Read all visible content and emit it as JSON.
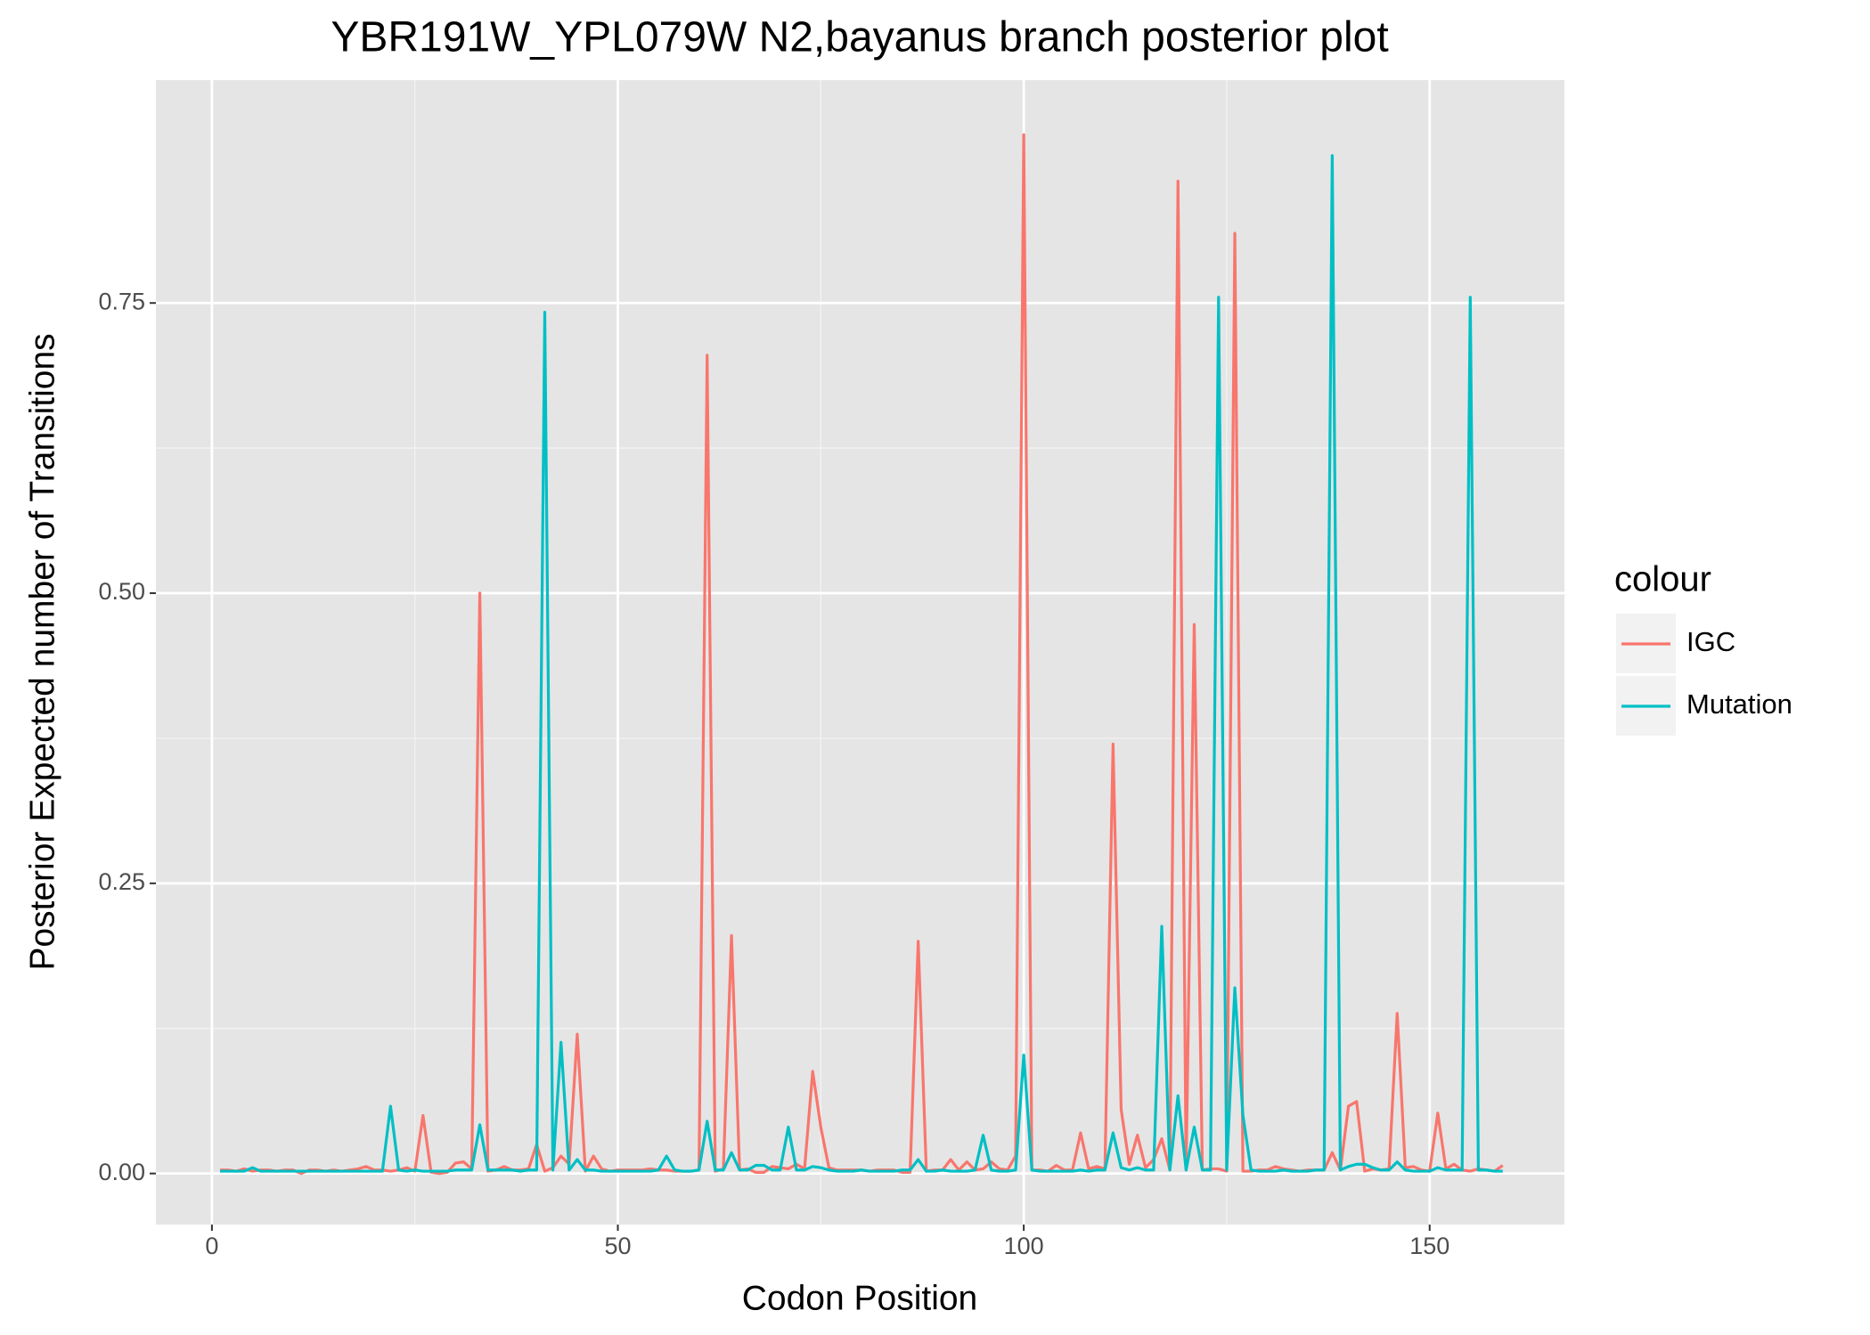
{
  "chart_data": {
    "type": "line",
    "title": "YBR191W_YPL079W N2,bayanus branch posterior plot",
    "x_label": "Codon Position",
    "y_label": "Posterior Expected number of Transitions",
    "legend_title": "colour",
    "legend": "right",
    "grid": true,
    "xlim": [
      -6.9,
      166.6
    ],
    "ylim": [
      -0.044,
      0.942
    ],
    "xticks": [
      0,
      50,
      100,
      150
    ],
    "yticks": [
      {
        "value": 0,
        "label": "0.00"
      },
      {
        "value": 0.25,
        "label": "0.25"
      },
      {
        "value": 0.5,
        "label": "0.50"
      },
      {
        "value": 0.75,
        "label": "0.75"
      }
    ],
    "x": [
      1,
      2,
      3,
      4,
      5,
      6,
      7,
      8,
      9,
      10,
      11,
      12,
      13,
      14,
      15,
      16,
      17,
      18,
      19,
      20,
      21,
      22,
      23,
      24,
      25,
      26,
      27,
      28,
      29,
      30,
      31,
      32,
      33,
      34,
      35,
      36,
      37,
      38,
      39,
      40,
      41,
      42,
      43,
      44,
      45,
      46,
      47,
      48,
      49,
      50,
      51,
      52,
      53,
      54,
      55,
      56,
      57,
      58,
      59,
      60,
      61,
      62,
      63,
      64,
      65,
      66,
      67,
      68,
      69,
      70,
      71,
      72,
      73,
      74,
      75,
      76,
      77,
      78,
      79,
      80,
      81,
      82,
      83,
      84,
      85,
      86,
      87,
      88,
      89,
      90,
      91,
      92,
      93,
      94,
      95,
      96,
      97,
      98,
      99,
      100,
      101,
      102,
      103,
      104,
      105,
      106,
      107,
      108,
      109,
      110,
      111,
      112,
      113,
      114,
      115,
      116,
      117,
      118,
      119,
      120,
      121,
      122,
      123,
      124,
      125,
      126,
      127,
      128,
      129,
      130,
      131,
      132,
      133,
      134,
      135,
      136,
      137,
      138,
      139,
      140,
      141,
      142,
      143,
      144,
      145,
      146,
      147,
      148,
      149,
      150,
      151,
      152,
      153,
      154,
      155,
      156,
      157,
      158,
      159
    ],
    "series": [
      {
        "name": "IGC",
        "color": "#F8766D",
        "values": [
          0.003,
          0.003,
          0.002,
          0.004,
          0.002,
          0.003,
          0.003,
          0.002,
          0.003,
          0.003,
          0,
          0.003,
          0.003,
          0.002,
          0.003,
          0.002,
          0.003,
          0.004,
          0.006,
          0.003,
          0.003,
          0.002,
          0.003,
          0.005,
          0.002,
          0.05,
          0.001,
          0,
          0.001,
          0.009,
          0.01,
          0.004,
          0.5,
          0.002,
          0.003,
          0.006,
          0.003,
          0.003,
          0.004,
          0.025,
          0.002,
          0.005,
          0.015,
          0.008,
          0.12,
          0.002,
          0.015,
          0.004,
          0.002,
          0.003,
          0.003,
          0.003,
          0.003,
          0.004,
          0.003,
          0.003,
          0.002,
          0.002,
          0.002,
          0.003,
          0.705,
          0.002,
          0.004,
          0.205,
          0.003,
          0.004,
          0.001,
          0.001,
          0.006,
          0.005,
          0.004,
          0.008,
          0.004,
          0.088,
          0.04,
          0.005,
          0.003,
          0.003,
          0.003,
          0.003,
          0.002,
          0.003,
          0.003,
          0.003,
          0.001,
          0.001,
          0.2,
          0.002,
          0.003,
          0.003,
          0.012,
          0.003,
          0.01,
          0.003,
          0.004,
          0.01,
          0.004,
          0.003,
          0.015,
          0.895,
          0.003,
          0.003,
          0.002,
          0.007,
          0.003,
          0.003,
          0.035,
          0.004,
          0.006,
          0.004,
          0.37,
          0.055,
          0.008,
          0.033,
          0.005,
          0.012,
          0.03,
          0.003,
          0.855,
          0.003,
          0.473,
          0.003,
          0.004,
          0.004,
          0.002,
          0.81,
          0.002,
          0.002,
          0.003,
          0.003,
          0.006,
          0.004,
          0.003,
          0.002,
          0.003,
          0.003,
          0.003,
          0.018,
          0.003,
          0.058,
          0.062,
          0.002,
          0.004,
          0.003,
          0.004,
          0.138,
          0.005,
          0.006,
          0.003,
          0.002,
          0.052,
          0.004,
          0.008,
          0.003,
          0.002,
          0.004,
          0.003,
          0.002,
          0.007
        ]
      },
      {
        "name": "Mutation",
        "color": "#00BFC4",
        "values": [
          0.002,
          0.002,
          0.002,
          0.002,
          0.005,
          0.002,
          0.002,
          0.002,
          0.002,
          0.002,
          0.002,
          0.002,
          0.002,
          0.002,
          0.002,
          0.002,
          0.002,
          0.002,
          0.002,
          0.002,
          0.002,
          0.058,
          0.003,
          0.002,
          0.003,
          0.002,
          0.002,
          0.002,
          0.002,
          0.003,
          0.003,
          0.003,
          0.042,
          0.003,
          0.003,
          0.003,
          0.003,
          0.002,
          0.003,
          0.003,
          0.742,
          0.003,
          0.113,
          0.003,
          0.012,
          0.003,
          0.003,
          0.002,
          0.002,
          0.002,
          0.002,
          0.002,
          0.002,
          0.002,
          0.003,
          0.015,
          0.003,
          0.002,
          0.002,
          0.003,
          0.045,
          0.003,
          0.003,
          0.018,
          0.003,
          0.003,
          0.007,
          0.007,
          0.003,
          0.003,
          0.04,
          0.003,
          0.003,
          0.006,
          0.005,
          0.003,
          0.002,
          0.002,
          0.002,
          0.003,
          0.002,
          0.002,
          0.002,
          0.002,
          0.003,
          0.003,
          0.012,
          0.002,
          0.002,
          0.003,
          0.002,
          0.002,
          0.002,
          0.003,
          0.033,
          0.003,
          0.002,
          0.002,
          0.003,
          0.102,
          0.003,
          0.002,
          0.002,
          0.002,
          0.002,
          0.002,
          0.003,
          0.002,
          0.003,
          0.003,
          0.035,
          0.005,
          0.003,
          0.005,
          0.003,
          0.003,
          0.213,
          0.003,
          0.067,
          0.003,
          0.04,
          0.003,
          0.003,
          0.755,
          0.003,
          0.16,
          0.05,
          0.003,
          0.002,
          0.002,
          0.002,
          0.003,
          0.002,
          0.002,
          0.002,
          0.003,
          0.003,
          0.877,
          0.003,
          0.006,
          0.008,
          0.008,
          0.005,
          0.003,
          0.003,
          0.01,
          0.003,
          0.002,
          0.002,
          0.002,
          0.005,
          0.003,
          0.003,
          0.003,
          0.755,
          0.003,
          0.003,
          0.002,
          0.002
        ]
      }
    ]
  }
}
